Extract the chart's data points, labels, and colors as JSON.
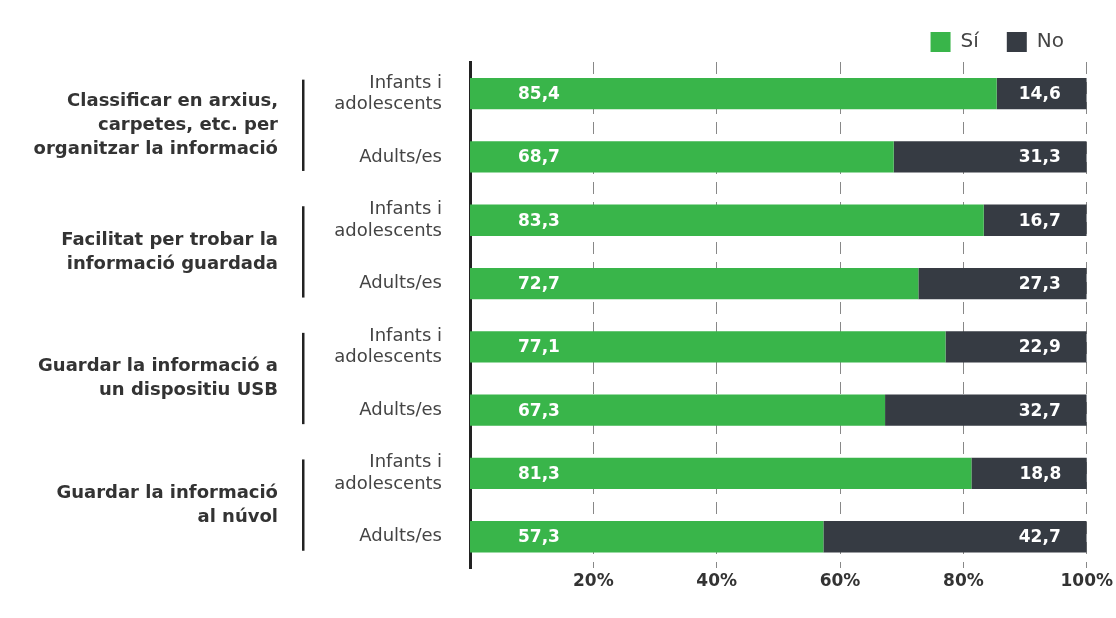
{
  "chart_data": {
    "type": "bar",
    "orientation": "horizontal",
    "stacked": true,
    "categories": [
      "Infants i adolescents",
      "Adults/es",
      "Infants i adolescents",
      "Adults/es",
      "Infants i adolescents",
      "Adults/es",
      "Infants i adolescents",
      "Adults/es"
    ],
    "series": [
      {
        "name": "Sí",
        "color": "#39b54a",
        "values": [
          85.4,
          68.7,
          83.3,
          72.7,
          77.1,
          67.3,
          81.3,
          57.3
        ],
        "value_labels": [
          "85,4",
          "68,7",
          "83,3",
          "72,7",
          "77,1",
          "67,3",
          "81,3",
          "57,3"
        ]
      },
      {
        "name": "No",
        "color": "#363b43",
        "values": [
          14.6,
          31.3,
          16.7,
          27.3,
          22.9,
          32.7,
          18.8,
          42.7
        ],
        "value_labels": [
          "14,6",
          "31,3",
          "16,7",
          "27,3",
          "22,9",
          "32,7",
          "18,8",
          "42,7"
        ]
      }
    ],
    "annotations": [
      "Classificar en arxius, carpetes, etc. per organitzar la informació",
      "Facilitat per trobar la informació guardada",
      "Guardar la informació a un dispositiu USB",
      "Guardar la informació al núvol"
    ],
    "xlim": [
      0,
      100
    ],
    "xticks": [
      {
        "value": 20,
        "label": "20%"
      },
      {
        "value": 40,
        "label": "40%"
      },
      {
        "value": 60,
        "label": "60%"
      },
      {
        "value": 80,
        "label": "80%"
      },
      {
        "value": 100,
        "label": "100%"
      }
    ],
    "grid": "x",
    "legend": "top right"
  }
}
